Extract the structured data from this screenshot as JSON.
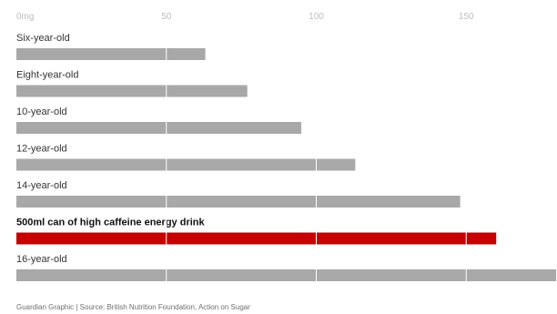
{
  "chart_data": {
    "type": "bar",
    "orientation": "horizontal",
    "categories": [
      "Six-year-old",
      "Eight-year-old",
      "10-year-old",
      "12-year-old",
      "14-year-old",
      "500ml can of high caffeine energy drink",
      "16-year-old"
    ],
    "values": [
      63,
      77,
      95,
      113,
      148,
      160,
      180
    ],
    "highlight": "500ml can of high caffeine energy drink",
    "xlim": [
      0,
      180
    ],
    "ticks": [
      0,
      50,
      100,
      150
    ],
    "tick_labels": [
      "0mg",
      "50",
      "100",
      "150"
    ],
    "gridlines": true,
    "colors": {
      "bar": "#a8a8a8",
      "highlight": "#c70000",
      "grid": "#ffffff"
    },
    "source": "Guardian Graphic | Source: British Nutrition Foundation, Action on Sugar"
  }
}
